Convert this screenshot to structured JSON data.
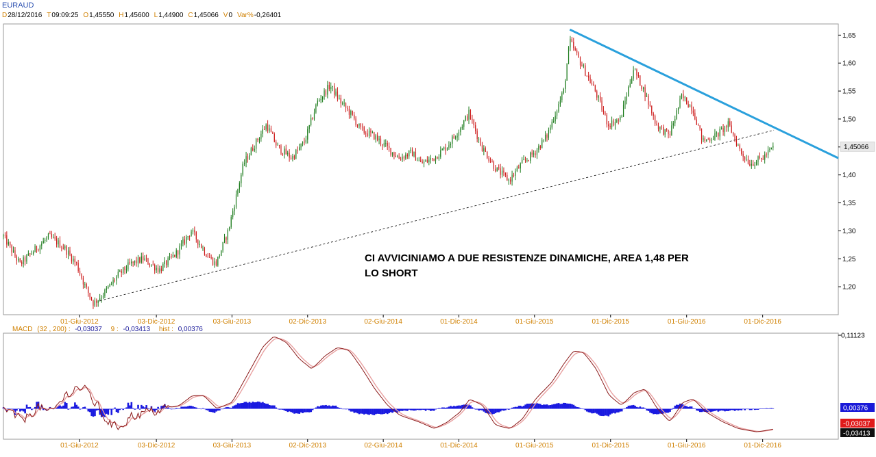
{
  "header": {
    "symbol": "EURAUD",
    "ohlc": [
      {
        "key": "D",
        "value": "28/12/2016"
      },
      {
        "key": "T",
        "value": "09:09:25"
      },
      {
        "key": "O",
        "value": "1,45550"
      },
      {
        "key": "H",
        "value": "1,45600"
      },
      {
        "key": "L",
        "value": "1,44900"
      },
      {
        "key": "C",
        "value": "1,45066"
      },
      {
        "key": "V",
        "value": "0"
      },
      {
        "key": "Var%",
        "value": "-0,26401"
      }
    ]
  },
  "annotation": {
    "line1": "CI AVVICINIAMO A DUE RESISTENZE DINAMICHE, AREA 1,48 PER",
    "line2": "LO SHORT"
  },
  "colors": {
    "up": "#1a7a1a",
    "down": "#cc1a1a",
    "resistance": "#2aa0dc",
    "macd_line": "#8b1a1a",
    "signal_line": "#e8a0a0",
    "histogram": "#1a1ae0",
    "label_accent": "#d08000"
  },
  "chart_data": [
    {
      "type": "candlestick",
      "symbol": "EURAUD",
      "ylim": [
        1.15,
        1.67
      ],
      "yticks": [
        "1,65",
        "1,60",
        "1,55",
        "1,50",
        "1,45",
        "1,40",
        "1,35",
        "1,30",
        "1,25",
        "1,20"
      ],
      "ytick_values": [
        1.65,
        1.6,
        1.55,
        1.5,
        1.45,
        1.4,
        1.35,
        1.3,
        1.25,
        1.2
      ],
      "xlim": [
        "2011-12-01",
        "2017-06-01"
      ],
      "xticks": [
        "01-Giu-2012",
        "03-Dic-2012",
        "03-Giu-2013",
        "02-Dic-2013",
        "02-Giu-2014",
        "01-Dic-2014",
        "01-Giu-2015",
        "01-Dic-2015",
        "01-Giu-2016",
        "01-Dic-2016"
      ],
      "xtick_dates": [
        "2012-06-01",
        "2012-12-03",
        "2013-06-03",
        "2013-12-02",
        "2014-06-02",
        "2014-12-01",
        "2015-06-01",
        "2015-12-01",
        "2016-06-01",
        "2016-12-01"
      ],
      "last_price_label": "1,45066",
      "last_price": 1.45066,
      "path_points": [
        [
          "2011-12-01",
          1.29
        ],
        [
          "2012-01-10",
          1.24
        ],
        [
          "2012-02-20",
          1.27
        ],
        [
          "2012-03-20",
          1.29
        ],
        [
          "2012-04-25",
          1.27
        ],
        [
          "2012-05-25",
          1.24
        ],
        [
          "2012-06-15",
          1.2
        ],
        [
          "2012-07-05",
          1.17
        ],
        [
          "2012-08-01",
          1.19
        ],
        [
          "2012-09-01",
          1.22
        ],
        [
          "2012-10-01",
          1.24
        ],
        [
          "2012-11-01",
          1.25
        ],
        [
          "2012-12-10",
          1.23
        ],
        [
          "2013-01-20",
          1.26
        ],
        [
          "2013-02-25",
          1.3
        ],
        [
          "2013-04-01",
          1.26
        ],
        [
          "2013-04-25",
          1.24
        ],
        [
          "2013-05-25",
          1.3
        ],
        [
          "2013-07-01",
          1.42
        ],
        [
          "2013-08-01",
          1.46
        ],
        [
          "2013-08-25",
          1.49
        ],
        [
          "2013-09-20",
          1.45
        ],
        [
          "2013-10-25",
          1.43
        ],
        [
          "2013-11-25",
          1.46
        ],
        [
          "2013-12-25",
          1.53
        ],
        [
          "2014-01-25",
          1.56
        ],
        [
          "2014-02-20",
          1.53
        ],
        [
          "2014-03-15",
          1.51
        ],
        [
          "2014-04-10",
          1.48
        ],
        [
          "2014-05-10",
          1.47
        ],
        [
          "2014-06-10",
          1.45
        ],
        [
          "2014-07-10",
          1.43
        ],
        [
          "2014-08-10",
          1.44
        ],
        [
          "2014-09-01",
          1.42
        ],
        [
          "2014-10-01",
          1.43
        ],
        [
          "2014-11-01",
          1.45
        ],
        [
          "2014-12-01",
          1.48
        ],
        [
          "2014-12-25",
          1.51
        ],
        [
          "2015-01-25",
          1.45
        ],
        [
          "2015-03-01",
          1.41
        ],
        [
          "2015-04-01",
          1.39
        ],
        [
          "2015-05-01",
          1.42
        ],
        [
          "2015-06-01",
          1.44
        ],
        [
          "2015-07-01",
          1.47
        ],
        [
          "2015-08-10",
          1.55
        ],
        [
          "2015-08-25",
          1.64
        ],
        [
          "2015-09-20",
          1.6
        ],
        [
          "2015-10-25",
          1.55
        ],
        [
          "2015-11-25",
          1.49
        ],
        [
          "2015-12-25",
          1.5
        ],
        [
          "2016-01-25",
          1.59
        ],
        [
          "2016-02-20",
          1.55
        ],
        [
          "2016-03-20",
          1.49
        ],
        [
          "2016-04-20",
          1.47
        ],
        [
          "2016-05-20",
          1.54
        ],
        [
          "2016-06-15",
          1.52
        ],
        [
          "2016-07-10",
          1.46
        ],
        [
          "2016-08-10",
          1.47
        ],
        [
          "2016-09-10",
          1.49
        ],
        [
          "2016-10-10",
          1.44
        ],
        [
          "2016-11-01",
          1.42
        ],
        [
          "2016-12-01",
          1.43
        ],
        [
          "2016-12-28",
          1.45066
        ]
      ],
      "trendlines": [
        {
          "name": "descending-resistance",
          "style": "solid",
          "from": [
            "2015-08-25",
            1.66
          ],
          "to": [
            "2017-06-01",
            1.43
          ]
        },
        {
          "name": "ascending-trendline",
          "style": "dashed",
          "from": [
            "2012-07-20",
            1.175
          ],
          "to": [
            "2016-12-28",
            1.48
          ]
        }
      ]
    },
    {
      "type": "macd",
      "label": "MACD",
      "params": "(32 , 200) :",
      "macd_value": "-0,03037",
      "signal_label": "9 :",
      "signal_value": "-0,03413",
      "hist_label": "hist :",
      "hist_value": "0,00376",
      "axis_top_label": "0,11123",
      "ylim": [
        -0.046,
        0.11123
      ],
      "xticks": [
        "01-Giu-2012",
        "03-Dic-2012",
        "03-Giu-2013",
        "02-Dic-2013",
        "02-Giu-2014",
        "01-Dic-2014",
        "01-Giu-2015",
        "01-Dic-2015",
        "01-Giu-2016",
        "01-Dic-2016"
      ],
      "path_points": [
        [
          "2011-12-01",
          0.0
        ],
        [
          "2012-01-10",
          -0.02
        ],
        [
          "2012-02-20",
          0.005
        ],
        [
          "2012-03-20",
          -0.01
        ],
        [
          "2012-04-25",
          0.02
        ],
        [
          "2012-05-25",
          0.035
        ],
        [
          "2012-06-25",
          0.02
        ],
        [
          "2012-07-25",
          -0.01
        ],
        [
          "2012-08-25",
          -0.03
        ],
        [
          "2012-10-01",
          -0.01
        ],
        [
          "2012-11-15",
          -0.005
        ],
        [
          "2012-12-20",
          0.0
        ],
        [
          "2013-01-25",
          0.005
        ],
        [
          "2013-02-25",
          0.02
        ],
        [
          "2013-03-25",
          0.02
        ],
        [
          "2013-04-25",
          0.0
        ],
        [
          "2013-06-01",
          0.01
        ],
        [
          "2013-07-15",
          0.06
        ],
        [
          "2013-08-15",
          0.095
        ],
        [
          "2013-09-10",
          0.11
        ],
        [
          "2013-10-10",
          0.1
        ],
        [
          "2013-11-10",
          0.075
        ],
        [
          "2013-12-10",
          0.06
        ],
        [
          "2014-01-10",
          0.08
        ],
        [
          "2014-02-10",
          0.093
        ],
        [
          "2014-03-10",
          0.088
        ],
        [
          "2014-04-10",
          0.06
        ],
        [
          "2014-05-10",
          0.03
        ],
        [
          "2014-06-10",
          0.005
        ],
        [
          "2014-07-10",
          -0.01
        ],
        [
          "2014-08-25",
          -0.02
        ],
        [
          "2014-10-01",
          -0.03
        ],
        [
          "2014-11-01",
          -0.02
        ],
        [
          "2014-12-01",
          -0.005
        ],
        [
          "2014-12-25",
          0.015
        ],
        [
          "2015-01-25",
          0.005
        ],
        [
          "2015-02-25",
          -0.025
        ],
        [
          "2015-04-01",
          -0.03
        ],
        [
          "2015-05-01",
          -0.015
        ],
        [
          "2015-06-01",
          0.015
        ],
        [
          "2015-07-10",
          0.04
        ],
        [
          "2015-08-10",
          0.07
        ],
        [
          "2015-09-01",
          0.088
        ],
        [
          "2015-09-25",
          0.085
        ],
        [
          "2015-10-25",
          0.06
        ],
        [
          "2015-11-25",
          0.02
        ],
        [
          "2015-12-25",
          0.005
        ],
        [
          "2016-01-25",
          0.025
        ],
        [
          "2016-02-20",
          0.03
        ],
        [
          "2016-03-20",
          0.0
        ],
        [
          "2016-04-20",
          -0.02
        ],
        [
          "2016-05-20",
          0.01
        ],
        [
          "2016-06-15",
          0.015
        ],
        [
          "2016-07-15",
          -0.005
        ],
        [
          "2016-08-25",
          -0.02
        ],
        [
          "2016-10-01",
          -0.03
        ],
        [
          "2016-11-15",
          -0.035
        ],
        [
          "2016-12-28",
          -0.03037
        ]
      ]
    }
  ]
}
